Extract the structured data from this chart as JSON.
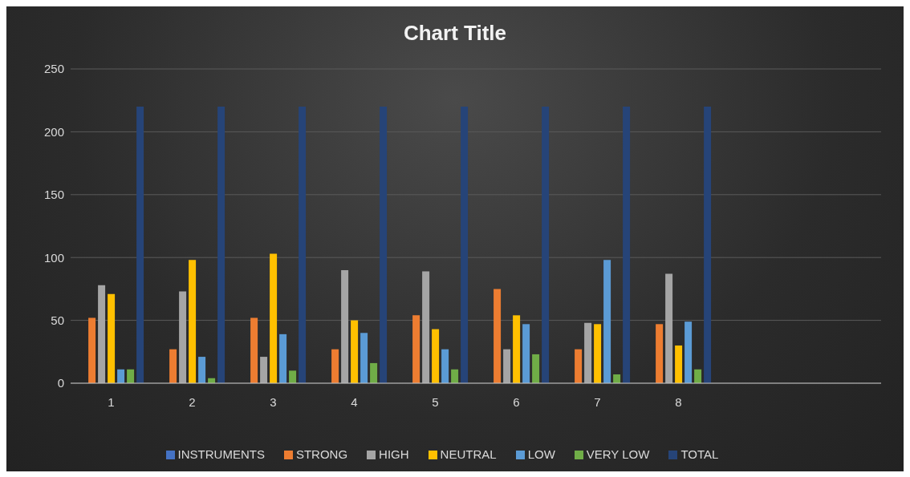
{
  "chart_data": {
    "type": "bar",
    "title": "Chart Title",
    "categories": [
      "1",
      "2",
      "3",
      "4",
      "5",
      "6",
      "7",
      "8",
      null,
      null
    ],
    "series": [
      {
        "name": "INSTRUMENTS",
        "color": "#4472c4",
        "values": [
          null,
          null,
          null,
          null,
          null,
          null,
          null,
          null,
          null,
          null
        ]
      },
      {
        "name": "STRONG",
        "color": "#ed7d31",
        "values": [
          52,
          27,
          52,
          27,
          54,
          75,
          27,
          47,
          null,
          null
        ]
      },
      {
        "name": "HIGH",
        "color": "#a5a5a5",
        "values": [
          78,
          73,
          21,
          90,
          89,
          27,
          48,
          87,
          null,
          null
        ]
      },
      {
        "name": "NEUTRAL",
        "color": "#ffc000",
        "values": [
          71,
          98,
          103,
          50,
          43,
          54,
          47,
          30,
          null,
          null
        ]
      },
      {
        "name": "LOW",
        "color": "#5b9bd5",
        "values": [
          11,
          21,
          39,
          40,
          27,
          47,
          98,
          49,
          null,
          null
        ]
      },
      {
        "name": "VERY LOW",
        "color": "#70ad47",
        "values": [
          11,
          4,
          10,
          16,
          11,
          23,
          7,
          11,
          null,
          null
        ]
      },
      {
        "name": "TOTAL",
        "color": "#264478",
        "values": [
          220,
          220,
          220,
          220,
          220,
          220,
          220,
          220,
          null,
          null
        ]
      }
    ],
    "ylim": [
      0,
      250
    ],
    "yticks": [
      0,
      50,
      100,
      150,
      200,
      250
    ],
    "grid": "y",
    "legend": "bottom"
  }
}
